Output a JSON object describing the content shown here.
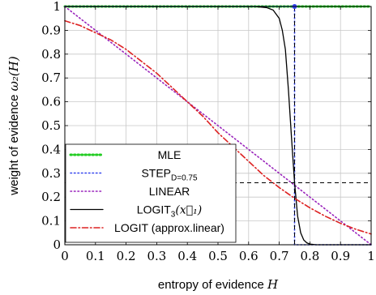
{
  "chart_data": {
    "type": "line",
    "xlabel_text": "entropy of evidence ",
    "xlabel_var": "H",
    "ylabel_text": "weight of evidence ",
    "ylabel_math": "ω₂(H)",
    "xlim": [
      0,
      1
    ],
    "ylim": [
      0,
      1
    ],
    "xticks": [
      0,
      0.1,
      0.2,
      0.3,
      0.4,
      0.5,
      0.6,
      0.7,
      0.8,
      0.9,
      1
    ],
    "xtick_labels": [
      "0",
      "0.1",
      "0.2",
      "0.3",
      "0.4",
      "0.5",
      "0.6",
      "0.7",
      "0.8",
      "0.9",
      "1"
    ],
    "yticks": [
      0,
      0.1,
      0.2,
      0.3,
      0.4,
      0.5,
      0.6,
      0.7,
      0.8,
      0.9,
      1
    ],
    "ytick_labels": [
      "0",
      "0.1",
      "0.2",
      "0.3",
      "0.4",
      "0.5",
      "0.6",
      "0.7",
      "0.8",
      "0.9",
      "1"
    ],
    "grid": true,
    "legend_position": "bottom-left",
    "series": [
      {
        "name": "MLE",
        "color": "#22cc22",
        "style": "dotted",
        "x": [
          0,
          1
        ],
        "y": [
          1,
          1
        ]
      },
      {
        "name": "STEP",
        "name_sub": "D=0.75",
        "color": "#3344ee",
        "style": "dotted",
        "x": [
          0,
          0.75,
          0.75,
          1
        ],
        "y": [
          1,
          1,
          0,
          0
        ]
      },
      {
        "name": "LINEAR",
        "color": "#9922bb",
        "style": "dotted",
        "x": [
          0,
          1
        ],
        "y": [
          1,
          0
        ]
      },
      {
        "name": "LOGIT",
        "name_sub": "3",
        "name_suffix": "(x⃗₁)",
        "color": "#000000",
        "style": "solid",
        "x": [
          0,
          0.62,
          0.66,
          0.68,
          0.7,
          0.71,
          0.72,
          0.73,
          0.74,
          0.75,
          0.76,
          0.77,
          0.78,
          0.79,
          0.8,
          0.82,
          1
        ],
        "y": [
          1,
          1,
          0.995,
          0.985,
          0.95,
          0.9,
          0.82,
          0.65,
          0.45,
          0.26,
          0.12,
          0.05,
          0.02,
          0.008,
          0.003,
          0,
          0
        ]
      },
      {
        "name": "LOGIT (approx.linear)",
        "color": "#dd2222",
        "style": "dashdot",
        "x": [
          0,
          0.05,
          0.1,
          0.15,
          0.2,
          0.25,
          0.3,
          0.35,
          0.4,
          0.45,
          0.5,
          0.55,
          0.6,
          0.65,
          0.7,
          0.75,
          0.8,
          0.85,
          0.9,
          0.95,
          1
        ],
        "y": [
          0.94,
          0.92,
          0.89,
          0.86,
          0.82,
          0.77,
          0.72,
          0.66,
          0.6,
          0.54,
          0.47,
          0.41,
          0.35,
          0.29,
          0.24,
          0.195,
          0.155,
          0.12,
          0.09,
          0.065,
          0.045
        ]
      }
    ],
    "annotations": {
      "marker": {
        "x": 0.75,
        "y": 1,
        "color": "#3344ee"
      },
      "vline_x": 0.75,
      "hline_y": 0.26
    }
  }
}
